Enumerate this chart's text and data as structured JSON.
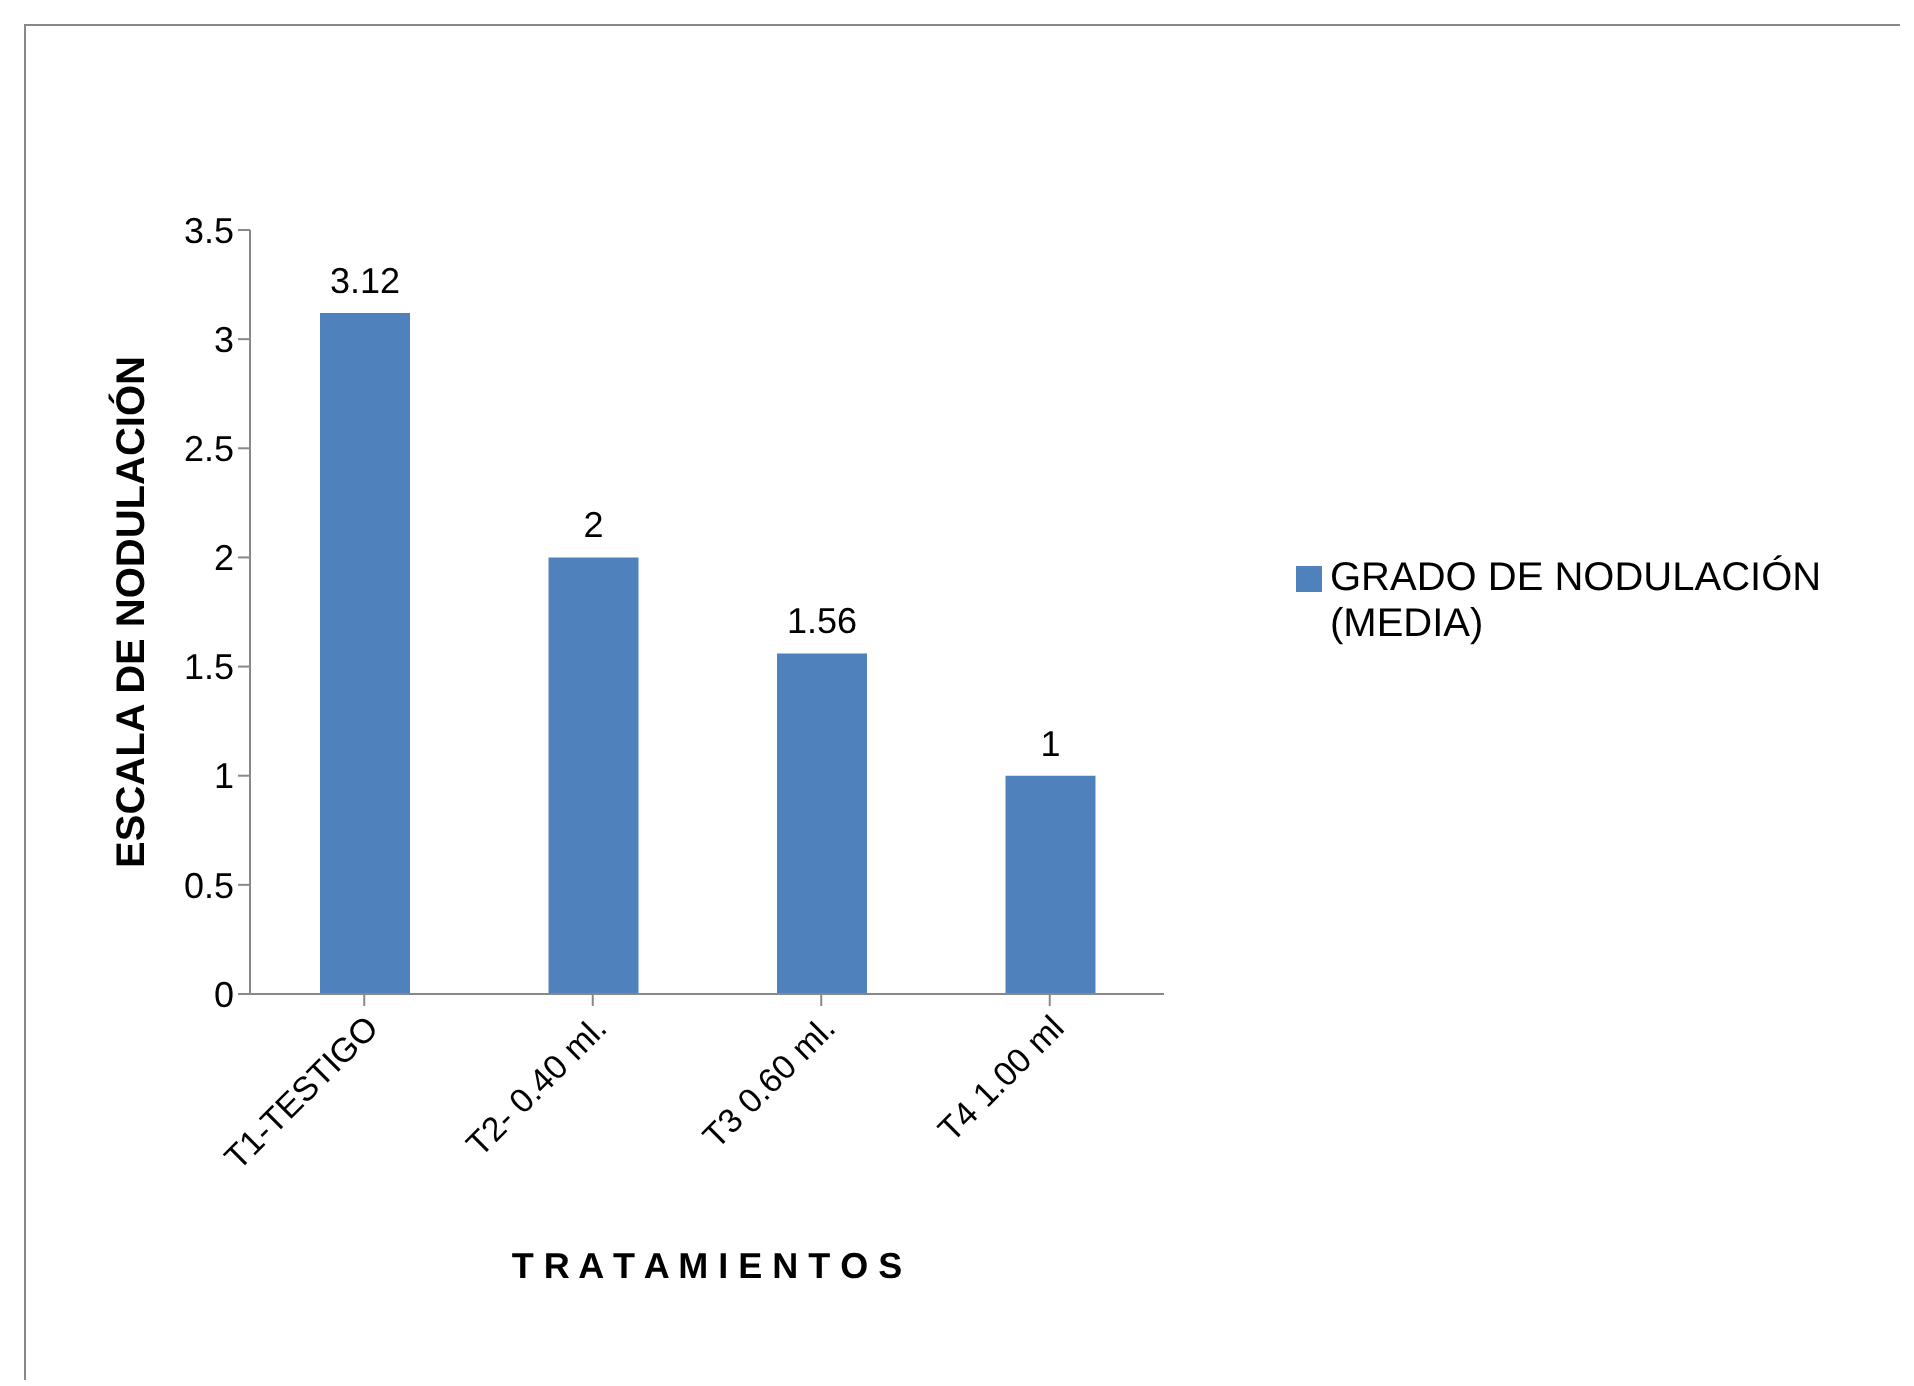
{
  "chart_data": {
    "type": "bar",
    "categories": [
      "T1-TESTIGO",
      "T2- 0.40 ml.",
      "T3 0.60 ml.",
      "T4 1.00 ml"
    ],
    "series": [
      {
        "name": "GRADO DE NODULACIÓN (MEDIA)",
        "color": "#4f81bd",
        "values": [
          3.12,
          2,
          1.56,
          1
        ]
      }
    ],
    "xlabel": "T R A T A M I E N T O S",
    "ylabel": "ESCALA DE NODULACIÓN",
    "ylim": [
      0,
      3.5
    ],
    "yticks": [
      0,
      0.5,
      1,
      1.5,
      2,
      2.5,
      3,
      3.5
    ],
    "grid": false,
    "legend": "right",
    "data_labels": true
  }
}
